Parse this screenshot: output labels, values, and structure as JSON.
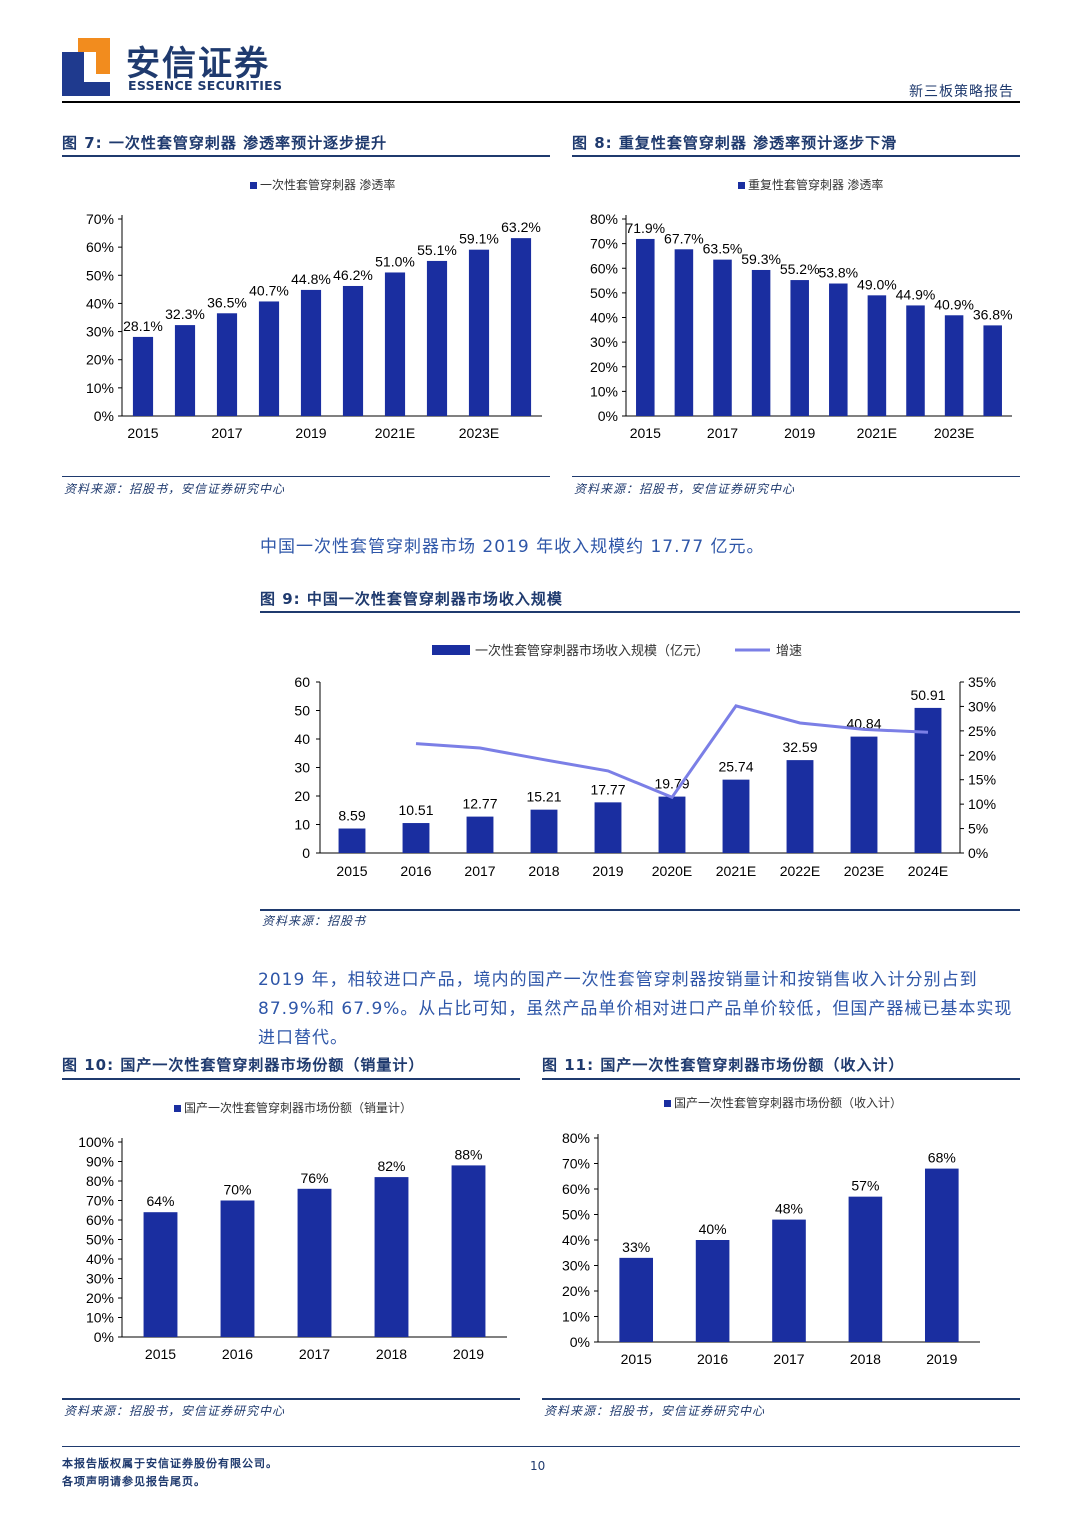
{
  "header": {
    "brand_cn": "安信证券",
    "brand_en": "ESSENCE SECURITIES",
    "report_type": "新三板策略报告"
  },
  "fig7": {
    "label": "图 7",
    "title": "一次性套管穿刺器 渗透率预计逐步提升",
    "source": "资料来源：招股书，安信证券研究中心",
    "chart_data": {
      "type": "bar",
      "legend": "一次性套管穿刺器 渗透率",
      "categories": [
        "2015",
        "2016",
        "2017",
        "2018",
        "2019",
        "2020E",
        "2021E",
        "2022E",
        "2023E",
        "2024E"
      ],
      "x_tick_labels": [
        "2015",
        "2017",
        "2019",
        "2021E",
        "2023E"
      ],
      "values": [
        28.1,
        32.3,
        36.5,
        40.7,
        44.8,
        46.2,
        51.0,
        55.1,
        59.1,
        63.2
      ],
      "data_labels": [
        "28.1%",
        "32.3%",
        "36.5%",
        "40.7%",
        "44.8%",
        "46.2%",
        "51.0%",
        "55.1%",
        "59.1%",
        "63.2%"
      ],
      "y_ticks": [
        "0%",
        "10%",
        "20%",
        "30%",
        "40%",
        "50%",
        "60%",
        "70%"
      ],
      "ylim": [
        0,
        70
      ],
      "color": "#1a2ea0"
    }
  },
  "fig8": {
    "label": "图 8",
    "title": "重复性套管穿刺器 渗透率预计逐步下滑",
    "source": "资料来源：招股书，安信证券研究中心",
    "chart_data": {
      "type": "bar",
      "legend": "重复性套管穿刺器 渗透率",
      "categories": [
        "2015",
        "2016",
        "2017",
        "2018",
        "2019",
        "2020E",
        "2021E",
        "2022E",
        "2023E",
        "2024E"
      ],
      "x_tick_labels": [
        "2015",
        "2017",
        "2019",
        "2021E",
        "2023E"
      ],
      "values": [
        71.9,
        67.7,
        63.5,
        59.3,
        55.2,
        53.8,
        49.0,
        44.9,
        40.9,
        36.8
      ],
      "data_labels": [
        "71.9%",
        "67.7%",
        "63.5%",
        "59.3%",
        "55.2%",
        "53.8%",
        "49.0%",
        "44.9%",
        "40.9%",
        "36.8%"
      ],
      "y_ticks": [
        "0%",
        "10%",
        "20%",
        "30%",
        "40%",
        "50%",
        "60%",
        "70%",
        "80%"
      ],
      "ylim": [
        0,
        80
      ],
      "color": "#1a2ea0"
    }
  },
  "para1": "中国一次性套管穿刺器市场 2019 年收入规模约 17.77 亿元。",
  "fig9": {
    "label": "图 9",
    "title": "中国一次性套管穿刺器市场收入规模",
    "source": "资料来源：招股书",
    "chart_data": {
      "type": "bar+line",
      "categories": [
        "2015",
        "2016",
        "2017",
        "2018",
        "2019",
        "2020E",
        "2021E",
        "2022E",
        "2023E",
        "2024E"
      ],
      "series": [
        {
          "name": "一次性套管穿刺器市场收入规模（亿元）",
          "type": "bar",
          "axis": "left",
          "values": [
            8.59,
            10.51,
            12.77,
            15.21,
            17.77,
            19.79,
            25.74,
            32.59,
            40.84,
            50.91
          ],
          "data_labels": [
            "8.59",
            "10.51",
            "12.77",
            "15.21",
            "17.77",
            "19.79",
            "25.74",
            "32.59",
            "40.84",
            "50.91"
          ]
        },
        {
          "name": "增速",
          "type": "line",
          "axis": "right",
          "values": [
            null,
            22.4,
            21.5,
            19.1,
            16.8,
            11.4,
            30.1,
            26.6,
            25.3,
            24.7
          ]
        }
      ],
      "y_left_ticks": [
        "0",
        "10",
        "20",
        "30",
        "40",
        "50",
        "60"
      ],
      "y_left_lim": [
        0,
        60
      ],
      "y_right_ticks": [
        "0%",
        "5%",
        "10%",
        "15%",
        "20%",
        "25%",
        "30%",
        "35%"
      ],
      "y_right_lim": [
        0,
        35
      ],
      "bar_color": "#1a2ea0",
      "line_color": "#7b7fe6"
    }
  },
  "para2": "2019 年，相较进口产品，境内的国产一次性套管穿刺器按销量计和按销售收入计分别占到 87.9%和 67.9%。从占比可知，虽然产品单价相对进口产品单价较低，但国产器械已基本实现进口替代。",
  "fig10": {
    "label": "图 10",
    "title": "国产一次性套管穿刺器市场份额（销量计）",
    "source": "资料来源：招股书，安信证券研究中心",
    "chart_data": {
      "type": "bar",
      "legend": "国产一次性套管穿刺器市场份额（销量计）",
      "categories": [
        "2015",
        "2016",
        "2017",
        "2018",
        "2019"
      ],
      "values": [
        64,
        70,
        76,
        82,
        88
      ],
      "data_labels": [
        "64%",
        "70%",
        "76%",
        "82%",
        "88%"
      ],
      "y_ticks": [
        "0%",
        "10%",
        "20%",
        "30%",
        "40%",
        "50%",
        "60%",
        "70%",
        "80%",
        "90%",
        "100%"
      ],
      "ylim": [
        0,
        100
      ],
      "color": "#1a2ea0"
    }
  },
  "fig11": {
    "label": "图 11",
    "title": "国产一次性套管穿刺器市场份额（收入计）",
    "source": "资料来源：招股书，安信证券研究中心",
    "chart_data": {
      "type": "bar",
      "legend": "国产一次性套管穿刺器市场份额（收入计）",
      "categories": [
        "2015",
        "2016",
        "2017",
        "2018",
        "2019"
      ],
      "values": [
        33,
        40,
        48,
        57,
        68
      ],
      "data_labels": [
        "33%",
        "40%",
        "48%",
        "57%",
        "68%"
      ],
      "y_ticks": [
        "0%",
        "10%",
        "20%",
        "30%",
        "40%",
        "50%",
        "60%",
        "70%",
        "80%"
      ],
      "ylim": [
        0,
        80
      ],
      "color": "#1a2ea0"
    }
  },
  "footer": {
    "copyright": "本报告版权属于安信证券股份有限公司。",
    "disclaimer": "各项声明请参见报告尾页。",
    "page_number": "10"
  }
}
